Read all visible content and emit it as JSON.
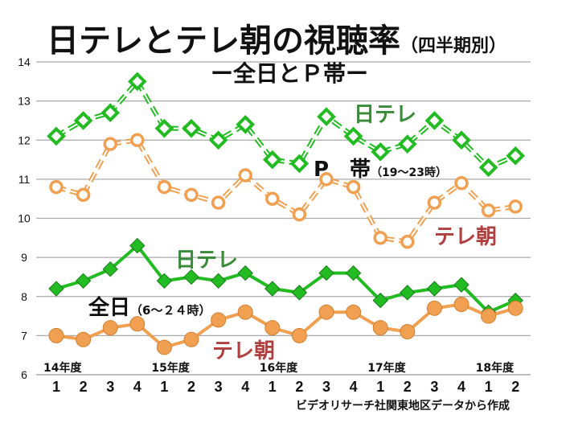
{
  "chart_data": {
    "type": "line",
    "title": "日テレとテレ朝の視聴率",
    "title_suffix": "（四半期別）",
    "subtitle": "ー全日とＰ帯ー",
    "ylim": [
      6,
      14
    ],
    "yticks": [
      6,
      7,
      8,
      9,
      10,
      11,
      12,
      13,
      14
    ],
    "grid": true,
    "year_labels": [
      {
        "label": "14年度",
        "index": 0
      },
      {
        "label": "15年度",
        "index": 4
      },
      {
        "label": "16年度",
        "index": 8
      },
      {
        "label": "17年度",
        "index": 12
      },
      {
        "label": "18年度",
        "index": 16
      }
    ],
    "categories": [
      "1",
      "2",
      "3",
      "4",
      "1",
      "2",
      "3",
      "4",
      "1",
      "2",
      "3",
      "4",
      "1",
      "2",
      "3",
      "4",
      "1",
      "2"
    ],
    "group_labels": {
      "prime": "P　帯",
      "prime_hours": "（19～23時）",
      "allday": "全日",
      "allday_hours": "（6～２４時）"
    },
    "series": [
      {
        "name": "日テレ",
        "group": "prime",
        "color": "#22bb22",
        "values": [
          12.1,
          12.5,
          12.7,
          13.5,
          12.3,
          12.3,
          12.0,
          12.4,
          11.5,
          11.4,
          12.6,
          12.1,
          11.7,
          11.9,
          12.5,
          12.0,
          11.3,
          11.6
        ]
      },
      {
        "name": "テレ朝",
        "group": "prime",
        "color": "#f0a050",
        "values": [
          10.8,
          10.6,
          11.9,
          12.0,
          10.8,
          10.6,
          10.4,
          11.1,
          10.5,
          10.1,
          11.0,
          10.8,
          9.5,
          9.4,
          10.4,
          10.9,
          10.2,
          10.3
        ]
      },
      {
        "name": "日テレ",
        "group": "allday",
        "color": "#22bb22",
        "values": [
          8.2,
          8.4,
          8.7,
          9.3,
          8.4,
          8.5,
          8.4,
          8.6,
          8.2,
          8.1,
          8.6,
          8.6,
          7.9,
          8.1,
          8.2,
          8.3,
          7.6,
          7.9
        ]
      },
      {
        "name": "テレ朝",
        "group": "allday",
        "color": "#f0a050",
        "values": [
          7.0,
          6.9,
          7.2,
          7.3,
          6.7,
          6.9,
          7.4,
          7.6,
          7.2,
          7.0,
          7.6,
          7.6,
          7.2,
          7.1,
          7.7,
          7.8,
          7.5,
          7.7
        ]
      }
    ],
    "label_colors": {
      "nittele": "#3a8a3a",
      "tvasahi": "#b04040"
    },
    "source_note": "ビデオリサーチ社関東地区データから作成"
  }
}
